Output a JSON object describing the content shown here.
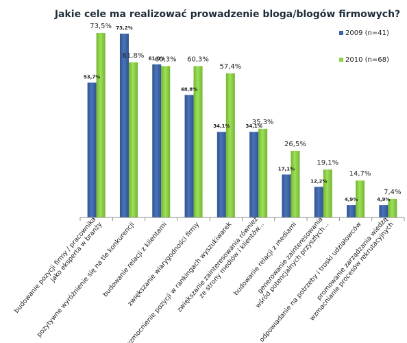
{
  "chart_data": {
    "type": "bar",
    "title": "Jakie cele ma realizować prowadzenie bloga/blogów firmowych?",
    "xlabel": "",
    "ylabel": "",
    "ylim": [
      0,
      80
    ],
    "grid": false,
    "legend_position": "right",
    "categories": [
      [
        "budowanie pozycji firmy / pracownika",
        "jako eksperta w branży"
      ],
      [
        "pozytywne wyróżnienie się na tle konkurencji"
      ],
      [
        "budowanie relacji z klientami"
      ],
      [
        "zwiększanie wiarygodności firmy"
      ],
      [
        "wzmocnienie pozycji w rankingach wyszukiwarek"
      ],
      [
        "zwiększanie zainteresowania również",
        "ze strony mediów i klientów..."
      ],
      [
        "budowanie relacji z mediami"
      ],
      [
        "generowanie zainteresowania",
        "wśród potencjalnych przyszłych..."
      ],
      [
        "odpowiadanie na potrzeby i troski udziałowców"
      ],
      [
        "promowanie zarządzania wiedzą",
        "wzmacnianie procesów rekrutacyjnych"
      ]
    ],
    "series": [
      {
        "name": "2009 (n=41)",
        "color": "#3e62a2",
        "values": [
          53.7,
          73.2,
          61.0,
          48.8,
          34.1,
          34.1,
          17.1,
          12.2,
          4.9,
          4.9
        ],
        "labels": [
          "53,7%",
          "73,2%",
          "61,0%",
          "48,8%",
          "34,1%",
          "34,1%",
          "17,1%",
          "12,2%",
          "4,9%",
          "4,9%"
        ]
      },
      {
        "name": "2010 (n=68)",
        "color": "#8dd14a",
        "values": [
          73.5,
          61.8,
          60.3,
          60.3,
          57.4,
          35.3,
          26.5,
          19.1,
          14.7,
          7.4
        ],
        "labels": [
          "73,5%",
          "61,8%",
          "60,3%",
          "60,3%",
          "57,4%",
          "35,3%",
          "26,5%",
          "19,1%",
          "14,7%",
          "7,4%"
        ]
      }
    ]
  }
}
